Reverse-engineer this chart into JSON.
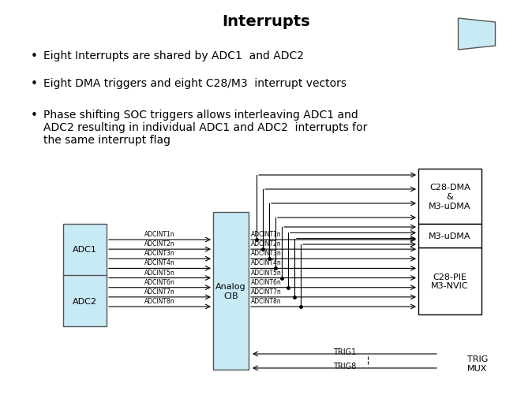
{
  "title": "Interrupts",
  "bullets": [
    "Eight Interrupts are shared by ADC1  and ADC2",
    "Eight DMA triggers and eight C28/M3  interrupt vectors",
    "Phase shifting SOC triggers allows interleaving ADC1 and\nADC2 resulting in individual ADC1 and ADC2  interrupts for\nthe same interrupt flag"
  ],
  "bg_color": "#ffffff",
  "title_fontsize": 14,
  "bullet_fontsize": 10,
  "adc_box_color": "#c8eaf5",
  "adc_box_edge": "#555555",
  "analog_cib_color": "#c8eaf5",
  "white_box_color": "#ffffff",
  "interrupt_labels": [
    "ADCINT1n",
    "ADCINT2n",
    "ADCINT3n",
    "ADCINT4n",
    "ADCINT5n",
    "ADCINT6n",
    "ADCINT7n",
    "ADCINT8n"
  ]
}
